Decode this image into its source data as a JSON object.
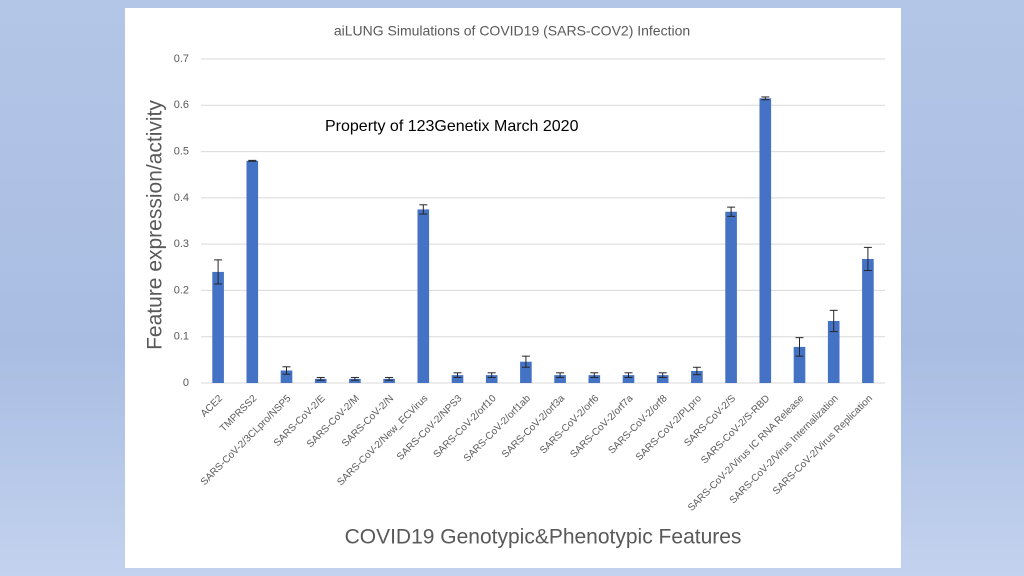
{
  "chart_data": {
    "type": "bar",
    "title": "aiLUNG Simulations of COVID19 (SARS-COV2) Infection",
    "annotation": "Property of 123Genetix March 2020",
    "y_label": "Feature expression/activity",
    "x_label": "COVID19 Genotypic&Phenotypic Features",
    "categories": [
      "ACE2",
      "TMPRSS2",
      "SARS-CoV-2/3CLpro/NSP5",
      "SARS-CoV-2/E",
      "SARS-CoV-2/M",
      "SARS-CoV-2/N",
      "SARS-CoV-2/New_ECVirus",
      "SARS-CoV-2/NPS3",
      "SARS-CoV-2/orf10",
      "SARS-CoV-2/orf1ab",
      "SARS-CoV-2/orf3a",
      "SARS-CoV-2/orf6",
      "SARS-CoV-2/orf7a",
      "SARS-CoV-2/orf8",
      "SARS-CoV-2/PLpro",
      "SARS-CoV-2/S",
      "SARS-CoV-2/S-RBD",
      "SARS-CoV-2/Virus IC RNA Release",
      "SARS-CoV-2/Virus Internalization",
      "SARS-CoV-2/Virus Replication"
    ],
    "values": [
      0.24,
      0.48,
      0.027,
      0.009,
      0.009,
      0.009,
      0.375,
      0.017,
      0.017,
      0.046,
      0.017,
      0.017,
      0.017,
      0.017,
      0.026,
      0.37,
      0.615,
      0.078,
      0.134,
      0.268
    ],
    "errors": [
      0.026,
      0.001,
      0.008,
      0.003,
      0.003,
      0.003,
      0.01,
      0.005,
      0.005,
      0.012,
      0.005,
      0.005,
      0.005,
      0.005,
      0.008,
      0.01,
      0.003,
      0.02,
      0.023,
      0.025
    ],
    "color": "#4472c4",
    "ylim": [
      0,
      0.7
    ],
    "yticks": [
      0,
      0.1,
      0.2,
      0.3,
      0.4,
      0.5,
      0.6,
      0.7
    ],
    "grid": true
  }
}
